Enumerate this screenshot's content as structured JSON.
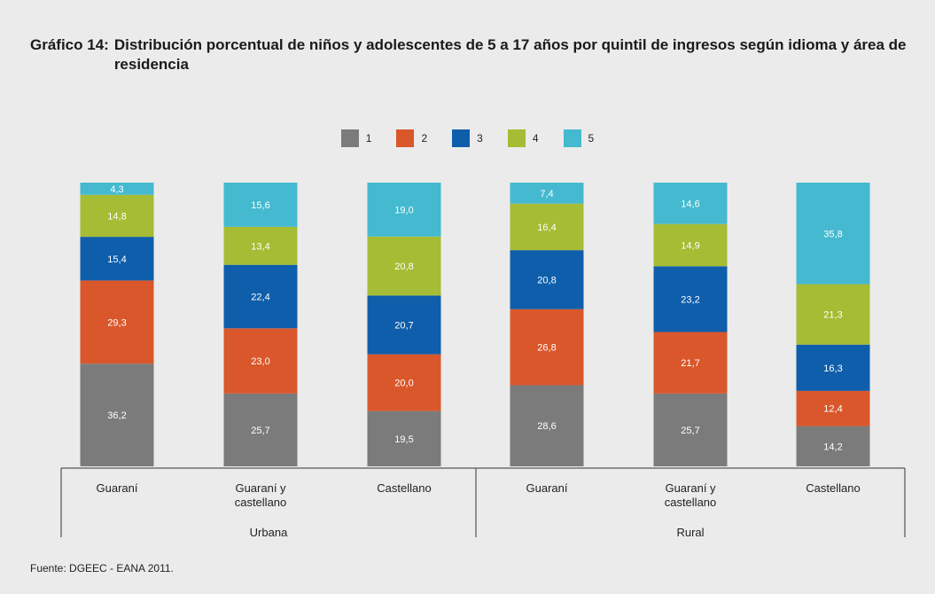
{
  "header": {
    "label": "Gráfico 14:",
    "title": "Distribución porcentual de niños y adolescentes de 5 a 17 años por quintil de ingresos según idioma y área de residencia"
  },
  "source": "Fuente: DGEEC - EANA 2011.",
  "colors": {
    "1": "#7b7b7b",
    "2": "#d9572b",
    "3": "#0f5eab",
    "4": "#a5bc34",
    "5": "#45b9cf"
  },
  "chart_data": {
    "type": "bar",
    "stacked": true,
    "percent": true,
    "legend_position": "top-center",
    "ylim": [
      0,
      100
    ],
    "groups": [
      {
        "name": "Urbana",
        "categories": [
          "Guaraní",
          "Guaraní y castellano",
          "Castellano"
        ]
      },
      {
        "name": "Rural",
        "categories": [
          "Guaraní",
          "Guaraní y castellano",
          "Castellano"
        ]
      }
    ],
    "categories": [
      "Guaraní",
      "Guaraní y castellano",
      "Castellano",
      "Guaraní",
      "Guaraní y castellano",
      "Castellano"
    ],
    "series": [
      {
        "name": "1",
        "values": [
          36.2,
          25.7,
          19.5,
          28.6,
          25.7,
          14.2
        ]
      },
      {
        "name": "2",
        "values": [
          29.3,
          23.0,
          20.0,
          26.8,
          21.7,
          12.4
        ]
      },
      {
        "name": "3",
        "values": [
          15.4,
          22.4,
          20.7,
          20.8,
          23.2,
          16.3
        ]
      },
      {
        "name": "4",
        "values": [
          14.8,
          13.4,
          20.8,
          16.4,
          14.9,
          21.3
        ]
      },
      {
        "name": "5",
        "values": [
          4.3,
          15.6,
          19.0,
          7.4,
          14.6,
          35.8
        ]
      }
    ]
  }
}
